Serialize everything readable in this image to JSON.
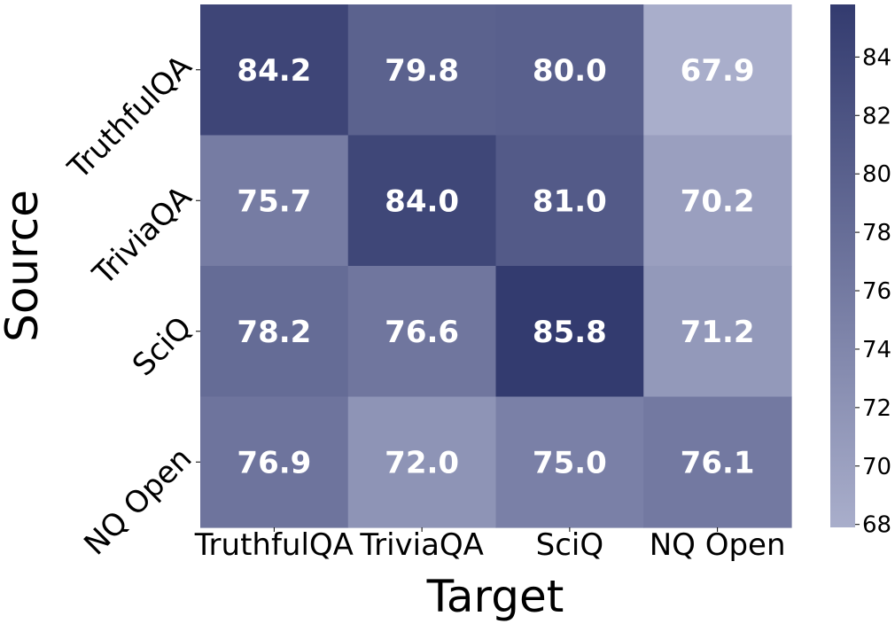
{
  "chart_data": {
    "type": "heatmap",
    "xlabel": "Target",
    "ylabel": "Source",
    "x_categories": [
      "TruthfulQA",
      "TriviaQA",
      "SciQ",
      "NQ Open"
    ],
    "y_categories": [
      "TruthfulQA",
      "TriviaQA",
      "SciQ",
      "NQ Open"
    ],
    "values": [
      [
        84.2,
        79.8,
        80.0,
        67.9
      ],
      [
        75.7,
        84.0,
        81.0,
        70.2
      ],
      [
        78.2,
        76.6,
        85.8,
        71.2
      ],
      [
        76.9,
        72.0,
        75.0,
        76.1
      ]
    ],
    "value_labels": [
      [
        "84.2",
        "79.8",
        "80.0",
        "67.9"
      ],
      [
        "75.7",
        "84.0",
        "81.0",
        "70.2"
      ],
      [
        "78.2",
        "76.6",
        "85.8",
        "71.2"
      ],
      [
        "76.9",
        "72.0",
        "75.0",
        "76.1"
      ]
    ],
    "colorbar": {
      "range": [
        67.9,
        85.8
      ],
      "ticks": [
        68,
        70,
        72,
        74,
        76,
        78,
        80,
        82,
        84
      ],
      "tick_labels": [
        "68",
        "70",
        "72",
        "74",
        "76",
        "78",
        "80",
        "82",
        "84"
      ],
      "color_low": "#a9aecb",
      "color_high": "#333b6f"
    },
    "grid": false,
    "legend": "colorbar-right"
  }
}
